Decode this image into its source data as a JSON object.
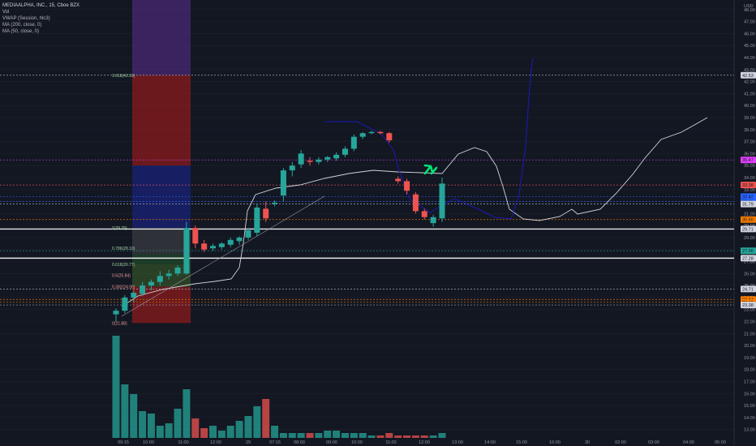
{
  "legend": {
    "title": "MEDIAALPHA, INC., 15, Cboe BZX",
    "indicators": [
      "Vol",
      "VWAP (Session, hlc3)",
      "MA (200, close, 0)",
      "MA (50, close, 0)"
    ]
  },
  "colors": {
    "bg": "#131722",
    "up": "#26a69a",
    "down": "#ef5350",
    "ma": "#d1d4dc",
    "projection": "#1a1ab8",
    "fib_up": "#a5d6a7",
    "fib_down": "#ef9a9a"
  },
  "chart_data": {
    "type": "candlestick",
    "y_axis": {
      "currency": "USD",
      "range": [
        12.3,
        48.8
      ],
      "ticks": [
        13,
        14,
        15,
        16,
        17,
        18,
        19,
        20,
        21,
        22,
        23,
        24,
        25,
        26,
        27,
        28,
        29,
        30,
        31,
        32,
        33,
        34,
        35,
        36,
        37,
        38,
        39,
        40,
        41,
        42,
        43,
        44,
        45,
        46,
        47,
        48
      ]
    },
    "x_axis": {
      "labels": [
        "09:15",
        "10:00",
        "11:00",
        "12:00",
        "29",
        "07:15",
        "08:00",
        "09:00",
        "10:00",
        "11:00",
        "12:00",
        "13:00",
        "14:00",
        "15:00",
        "16:00",
        "30",
        "02:00",
        "03:00",
        "04:00",
        "05:00"
      ]
    },
    "candles": [
      {
        "o": 22.6,
        "h": 23.1,
        "l": 22.0,
        "c": 22.9
      },
      {
        "o": 22.9,
        "h": 24.2,
        "l": 22.7,
        "c": 24.0
      },
      {
        "o": 24.0,
        "h": 24.6,
        "l": 23.6,
        "c": 24.4
      },
      {
        "o": 24.3,
        "h": 25.3,
        "l": 24.1,
        "c": 25.0
      },
      {
        "o": 25.0,
        "h": 25.5,
        "l": 24.6,
        "c": 25.3
      },
      {
        "o": 25.3,
        "h": 26.2,
        "l": 25.0,
        "c": 25.8
      },
      {
        "o": 25.8,
        "h": 26.3,
        "l": 25.5,
        "c": 26.0
      },
      {
        "o": 26.0,
        "h": 26.7,
        "l": 25.8,
        "c": 26.5
      },
      {
        "o": 26.0,
        "h": 30.3,
        "l": 25.9,
        "c": 29.8
      },
      {
        "o": 29.8,
        "h": 30.0,
        "l": 28.1,
        "c": 28.5
      },
      {
        "o": 28.5,
        "h": 28.8,
        "l": 27.8,
        "c": 28.0
      },
      {
        "o": 28.1,
        "h": 28.5,
        "l": 27.9,
        "c": 28.3
      },
      {
        "o": 28.2,
        "h": 28.6,
        "l": 28.0,
        "c": 28.5
      },
      {
        "o": 28.4,
        "h": 29.0,
        "l": 28.2,
        "c": 28.8
      },
      {
        "o": 28.7,
        "h": 29.1,
        "l": 28.4,
        "c": 29.0
      },
      {
        "o": 29.0,
        "h": 29.8,
        "l": 28.8,
        "c": 29.6
      },
      {
        "o": 29.4,
        "h": 31.8,
        "l": 29.1,
        "c": 31.5
      },
      {
        "o": 31.4,
        "h": 32.0,
        "l": 30.3,
        "c": 30.6
      },
      {
        "o": 31.8,
        "h": 32.1,
        "l": 31.6,
        "c": 31.9
      },
      {
        "o": 32.5,
        "h": 34.8,
        "l": 32.0,
        "c": 34.6
      },
      {
        "o": 34.6,
        "h": 35.3,
        "l": 34.1,
        "c": 35.0
      },
      {
        "o": 35.1,
        "h": 36.3,
        "l": 34.8,
        "c": 36.0
      },
      {
        "o": 35.4,
        "h": 35.7,
        "l": 35.0,
        "c": 35.3
      },
      {
        "o": 35.3,
        "h": 35.7,
        "l": 35.1,
        "c": 35.5
      },
      {
        "o": 35.5,
        "h": 35.8,
        "l": 35.3,
        "c": 35.7
      },
      {
        "o": 35.6,
        "h": 36.1,
        "l": 35.4,
        "c": 35.9
      },
      {
        "o": 35.9,
        "h": 36.6,
        "l": 35.7,
        "c": 36.4
      },
      {
        "o": 36.4,
        "h": 37.6,
        "l": 36.2,
        "c": 37.4
      },
      {
        "o": 37.4,
        "h": 37.8,
        "l": 37.2,
        "c": 37.7
      },
      {
        "o": 37.7,
        "h": 37.9,
        "l": 37.6,
        "c": 37.8
      },
      {
        "o": 37.8,
        "h": 37.9,
        "l": 37.6,
        "c": 37.7
      },
      {
        "o": 37.7,
        "h": 37.8,
        "l": 36.9,
        "c": 37.1
      },
      {
        "o": 33.9,
        "h": 34.1,
        "l": 33.5,
        "c": 33.7
      },
      {
        "o": 33.7,
        "h": 33.9,
        "l": 32.6,
        "c": 32.9
      },
      {
        "o": 32.6,
        "h": 32.8,
        "l": 31.0,
        "c": 31.2
      },
      {
        "o": 31.2,
        "h": 31.4,
        "l": 30.5,
        "c": 30.7
      },
      {
        "o": 30.2,
        "h": 30.9,
        "l": 29.9,
        "c": 30.7
      },
      {
        "o": 30.6,
        "h": 34.0,
        "l": 30.3,
        "c": 33.5
      }
    ],
    "volume": [
      42,
      22,
      18,
      11,
      10,
      5,
      6,
      12,
      20,
      8,
      4,
      5,
      3,
      5,
      7,
      9,
      13,
      16,
      5,
      2,
      2,
      2,
      2,
      2,
      3,
      3,
      2,
      2,
      2,
      1,
      1,
      2,
      1,
      1,
      1,
      1,
      1,
      2
    ],
    "levels": [
      {
        "price": 42.53,
        "label": "42.53",
        "color": "#b2b5be"
      },
      {
        "price": 35.47,
        "label": "35.47",
        "color": "#e040fb"
      },
      {
        "price": 33.38,
        "label": "33.38",
        "color": "#ef5350"
      },
      {
        "price": 32.42,
        "label": "32.42",
        "color": "#2962ff"
      },
      {
        "price": 32.01,
        "label": "32.01",
        "color": "#2962ff"
      },
      {
        "price": 31.79,
        "label": "31.79",
        "color": "#b2b5be"
      },
      {
        "price": 30.5,
        "label": "30.50",
        "color": "#f57c00"
      },
      {
        "price": 29.71,
        "label": "29.71",
        "color": "#ffffff"
      },
      {
        "price": 27.9,
        "label": "27.90",
        "color": "#26a69a"
      },
      {
        "price": 27.28,
        "label": "27.28",
        "color": "#ffffff"
      },
      {
        "price": 24.71,
        "label": "24.71",
        "color": "#b2b5be"
      },
      {
        "price": 23.84,
        "label": "23.84",
        "color": "#f57c00"
      },
      {
        "price": 23.6,
        "label": "23.60",
        "color": "#f57c00"
      },
      {
        "price": 23.38,
        "label": "23.38",
        "color": "#b2b5be"
      }
    ],
    "fib_labels": [
      {
        "text": "1.618(42.53)",
        "price": 42.53
      },
      {
        "text": "1(29.79)",
        "price": 29.8
      },
      {
        "text": "0.786(28.10)",
        "price": 28.1
      },
      {
        "text": "0.618(26.77)",
        "price": 26.77
      },
      {
        "text": "0.5(25.84)",
        "price": 25.84
      },
      {
        "text": "0.382(24.90)",
        "price": 24.9
      },
      {
        "text": "0(21.88)",
        "price": 21.88
      }
    ]
  }
}
